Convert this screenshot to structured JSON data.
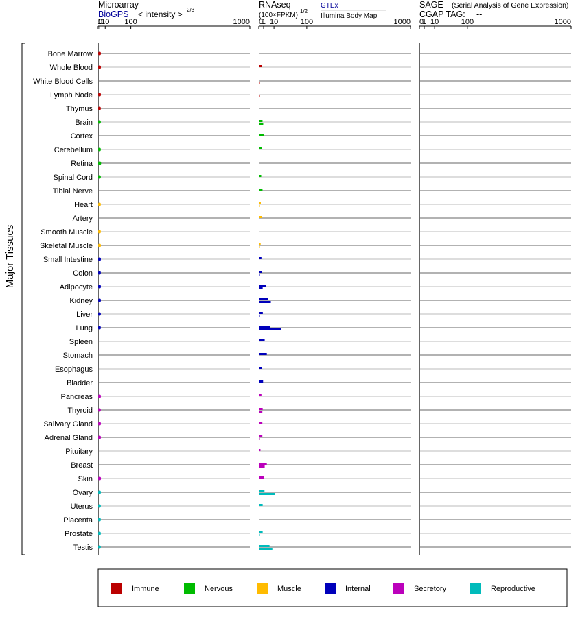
{
  "side_label": "Major Tissues",
  "chart_data": {
    "type": "bar",
    "panels": {
      "microarray": {
        "title": "Microarray",
        "source_link": "BioGPS",
        "scale_label": "< intensity >",
        "scale_power": "2/3",
        "ticks": [
          "0",
          "1",
          "10",
          "100",
          "1000"
        ]
      },
      "rnaseq": {
        "title": "RNAseq",
        "unit_label": "(100×FPKM)",
        "scale_power": "1/2",
        "source_link": "GTEx",
        "source_secondary": "Illumina Body Map",
        "ticks": [
          "0",
          "1",
          "10",
          "100",
          "1000"
        ]
      },
      "sage": {
        "title": "SAGE",
        "title_detail": "(Serial Analysis of Gene Expression)",
        "tag_label": "CGAP TAG:",
        "tag_value": "--",
        "ticks": [
          "0",
          "1",
          "10",
          "100",
          "1000"
        ]
      }
    },
    "categories": [
      "Immune",
      "Nervous",
      "Muscle",
      "Internal",
      "Secretory",
      "Reproductive"
    ],
    "colors": {
      "Immune": "#bb0000",
      "Nervous": "#00bb00",
      "Muscle": "#ffbb00",
      "Internal": "#0000bb",
      "Secretory": "#bb00bb",
      "Reproductive": "#00bbbb"
    },
    "tissues": [
      {
        "name": "Bone Marrow",
        "category": "Immune",
        "microarray": 2.4,
        "gtex": null,
        "ibm": null
      },
      {
        "name": "Whole Blood",
        "category": "Immune",
        "microarray": 2.4,
        "gtex": 0.35,
        "ibm": null
      },
      {
        "name": "White Blood Cells",
        "category": "Immune",
        "microarray": null,
        "gtex": null,
        "ibm": 0.01
      },
      {
        "name": "Lymph Node",
        "category": "Immune",
        "microarray": 2.4,
        "gtex": null,
        "ibm": 0.01
      },
      {
        "name": "Thymus",
        "category": "Immune",
        "microarray": 2.3,
        "gtex": null,
        "ibm": null
      },
      {
        "name": "Brain",
        "category": "Nervous",
        "microarray": 2.3,
        "gtex": 0.6,
        "ibm": 0.85
      },
      {
        "name": "Cortex",
        "category": "Nervous",
        "microarray": null,
        "gtex": 1.0,
        "ibm": null
      },
      {
        "name": "Cerebellum",
        "category": "Nervous",
        "microarray": 2.3,
        "gtex": 0.4,
        "ibm": null
      },
      {
        "name": "Retina",
        "category": "Nervous",
        "microarray": 2.7,
        "gtex": null,
        "ibm": null
      },
      {
        "name": "Spinal Cord",
        "category": "Nervous",
        "microarray": 2.3,
        "gtex": 0.25,
        "ibm": null
      },
      {
        "name": "Tibial Nerve",
        "category": "Nervous",
        "microarray": null,
        "gtex": 0.6,
        "ibm": null
      },
      {
        "name": "Heart",
        "category": "Muscle",
        "microarray": 2.3,
        "gtex": 0.18,
        "ibm": 0.01
      },
      {
        "name": "Artery",
        "category": "Muscle",
        "microarray": null,
        "gtex": 0.5,
        "ibm": null
      },
      {
        "name": "Smooth Muscle",
        "category": "Muscle",
        "microarray": 2.3,
        "gtex": null,
        "ibm": null
      },
      {
        "name": "Skeletal Muscle",
        "category": "Muscle",
        "microarray": 2.4,
        "gtex": 0.15,
        "ibm": 0.01
      },
      {
        "name": "Small Intestine",
        "category": "Internal",
        "microarray": 2.4,
        "gtex": 0.3,
        "ibm": null
      },
      {
        "name": "Colon",
        "category": "Internal",
        "microarray": 2.3,
        "gtex": 0.4,
        "ibm": 0.01
      },
      {
        "name": "Adipocyte",
        "category": "Internal",
        "microarray": 2.4,
        "gtex": 2.2,
        "ibm": 0.65
      },
      {
        "name": "Kidney",
        "category": "Internal",
        "microarray": 2.4,
        "gtex": 3.6,
        "ibm": 6.3
      },
      {
        "name": "Liver",
        "category": "Internal",
        "microarray": 2.3,
        "gtex": 0.7,
        "ibm": 0.01
      },
      {
        "name": "Lung",
        "category": "Internal",
        "microarray": 2.3,
        "gtex": 5.5,
        "ibm": 22.0
      },
      {
        "name": "Spleen",
        "category": "Internal",
        "microarray": null,
        "gtex": 1.5,
        "ibm": null
      },
      {
        "name": "Stomach",
        "category": "Internal",
        "microarray": null,
        "gtex": 2.8,
        "ibm": null
      },
      {
        "name": "Esophagus",
        "category": "Internal",
        "microarray": null,
        "gtex": 0.4,
        "ibm": null
      },
      {
        "name": "Bladder",
        "category": "Internal",
        "microarray": null,
        "gtex": 0.8,
        "ibm": null
      },
      {
        "name": "Pancreas",
        "category": "Secretory",
        "microarray": 2.4,
        "gtex": 0.3,
        "ibm": null
      },
      {
        "name": "Thyroid",
        "category": "Secretory",
        "microarray": 2.3,
        "gtex": 0.65,
        "ibm": 0.55
      },
      {
        "name": "Salivary Gland",
        "category": "Secretory",
        "microarray": 2.4,
        "gtex": 0.55,
        "ibm": null
      },
      {
        "name": "Adrenal Gland",
        "category": "Secretory",
        "microarray": 2.4,
        "gtex": 0.55,
        "ibm": 0.01
      },
      {
        "name": "Pituitary",
        "category": "Secretory",
        "microarray": null,
        "gtex": 0.12,
        "ibm": null
      },
      {
        "name": "Breast",
        "category": "Secretory",
        "microarray": null,
        "gtex": 2.8,
        "ibm": 1.5
      },
      {
        "name": "Skin",
        "category": "Secretory",
        "microarray": 2.5,
        "gtex": 1.3,
        "ibm": null
      },
      {
        "name": "Ovary",
        "category": "Reproductive",
        "microarray": 2.4,
        "gtex": 1.4,
        "ibm": 11.0
      },
      {
        "name": "Uterus",
        "category": "Reproductive",
        "microarray": 2.3,
        "gtex": 0.65,
        "ibm": null
      },
      {
        "name": "Placenta",
        "category": "Reproductive",
        "microarray": 2.3,
        "gtex": null,
        "ibm": null
      },
      {
        "name": "Prostate",
        "category": "Reproductive",
        "microarray": 2.3,
        "gtex": 0.65,
        "ibm": 0.01
      },
      {
        "name": "Testis",
        "category": "Reproductive",
        "microarray": 2.3,
        "gtex": 5.0,
        "ibm": 8.0
      }
    ]
  }
}
